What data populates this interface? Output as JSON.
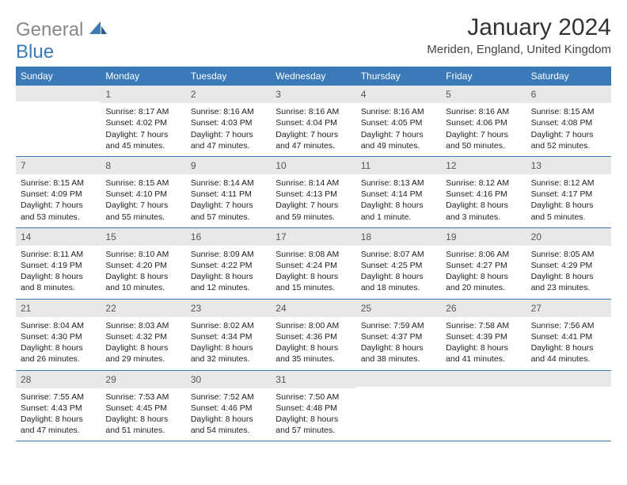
{
  "logo": {
    "gray": "General",
    "blue": "Blue"
  },
  "title": "January 2024",
  "location": "Meriden, England, United Kingdom",
  "colors": {
    "header_bg": "#3a7ab8",
    "header_text": "#ffffff",
    "daynum_bg": "#e8e8e8",
    "daynum_text": "#555555",
    "body_text": "#222222",
    "logo_gray": "#888888",
    "logo_blue": "#3a7ab8",
    "rule": "#3a7ab8"
  },
  "typography": {
    "title_fontsize": 30,
    "location_fontsize": 15,
    "header_fontsize": 12,
    "cell_fontsize": 10.5
  },
  "days_of_week": [
    "Sunday",
    "Monday",
    "Tuesday",
    "Wednesday",
    "Thursday",
    "Friday",
    "Saturday"
  ],
  "weeks": [
    [
      {
        "n": "",
        "lines": [
          "",
          "",
          "",
          ""
        ]
      },
      {
        "n": "1",
        "lines": [
          "Sunrise: 8:17 AM",
          "Sunset: 4:02 PM",
          "Daylight: 7 hours",
          "and 45 minutes."
        ]
      },
      {
        "n": "2",
        "lines": [
          "Sunrise: 8:16 AM",
          "Sunset: 4:03 PM",
          "Daylight: 7 hours",
          "and 47 minutes."
        ]
      },
      {
        "n": "3",
        "lines": [
          "Sunrise: 8:16 AM",
          "Sunset: 4:04 PM",
          "Daylight: 7 hours",
          "and 47 minutes."
        ]
      },
      {
        "n": "4",
        "lines": [
          "Sunrise: 8:16 AM",
          "Sunset: 4:05 PM",
          "Daylight: 7 hours",
          "and 49 minutes."
        ]
      },
      {
        "n": "5",
        "lines": [
          "Sunrise: 8:16 AM",
          "Sunset: 4:06 PM",
          "Daylight: 7 hours",
          "and 50 minutes."
        ]
      },
      {
        "n": "6",
        "lines": [
          "Sunrise: 8:15 AM",
          "Sunset: 4:08 PM",
          "Daylight: 7 hours",
          "and 52 minutes."
        ]
      }
    ],
    [
      {
        "n": "7",
        "lines": [
          "Sunrise: 8:15 AM",
          "Sunset: 4:09 PM",
          "Daylight: 7 hours",
          "and 53 minutes."
        ]
      },
      {
        "n": "8",
        "lines": [
          "Sunrise: 8:15 AM",
          "Sunset: 4:10 PM",
          "Daylight: 7 hours",
          "and 55 minutes."
        ]
      },
      {
        "n": "9",
        "lines": [
          "Sunrise: 8:14 AM",
          "Sunset: 4:11 PM",
          "Daylight: 7 hours",
          "and 57 minutes."
        ]
      },
      {
        "n": "10",
        "lines": [
          "Sunrise: 8:14 AM",
          "Sunset: 4:13 PM",
          "Daylight: 7 hours",
          "and 59 minutes."
        ]
      },
      {
        "n": "11",
        "lines": [
          "Sunrise: 8:13 AM",
          "Sunset: 4:14 PM",
          "Daylight: 8 hours",
          "and 1 minute."
        ]
      },
      {
        "n": "12",
        "lines": [
          "Sunrise: 8:12 AM",
          "Sunset: 4:16 PM",
          "Daylight: 8 hours",
          "and 3 minutes."
        ]
      },
      {
        "n": "13",
        "lines": [
          "Sunrise: 8:12 AM",
          "Sunset: 4:17 PM",
          "Daylight: 8 hours",
          "and 5 minutes."
        ]
      }
    ],
    [
      {
        "n": "14",
        "lines": [
          "Sunrise: 8:11 AM",
          "Sunset: 4:19 PM",
          "Daylight: 8 hours",
          "and 8 minutes."
        ]
      },
      {
        "n": "15",
        "lines": [
          "Sunrise: 8:10 AM",
          "Sunset: 4:20 PM",
          "Daylight: 8 hours",
          "and 10 minutes."
        ]
      },
      {
        "n": "16",
        "lines": [
          "Sunrise: 8:09 AM",
          "Sunset: 4:22 PM",
          "Daylight: 8 hours",
          "and 12 minutes."
        ]
      },
      {
        "n": "17",
        "lines": [
          "Sunrise: 8:08 AM",
          "Sunset: 4:24 PM",
          "Daylight: 8 hours",
          "and 15 minutes."
        ]
      },
      {
        "n": "18",
        "lines": [
          "Sunrise: 8:07 AM",
          "Sunset: 4:25 PM",
          "Daylight: 8 hours",
          "and 18 minutes."
        ]
      },
      {
        "n": "19",
        "lines": [
          "Sunrise: 8:06 AM",
          "Sunset: 4:27 PM",
          "Daylight: 8 hours",
          "and 20 minutes."
        ]
      },
      {
        "n": "20",
        "lines": [
          "Sunrise: 8:05 AM",
          "Sunset: 4:29 PM",
          "Daylight: 8 hours",
          "and 23 minutes."
        ]
      }
    ],
    [
      {
        "n": "21",
        "lines": [
          "Sunrise: 8:04 AM",
          "Sunset: 4:30 PM",
          "Daylight: 8 hours",
          "and 26 minutes."
        ]
      },
      {
        "n": "22",
        "lines": [
          "Sunrise: 8:03 AM",
          "Sunset: 4:32 PM",
          "Daylight: 8 hours",
          "and 29 minutes."
        ]
      },
      {
        "n": "23",
        "lines": [
          "Sunrise: 8:02 AM",
          "Sunset: 4:34 PM",
          "Daylight: 8 hours",
          "and 32 minutes."
        ]
      },
      {
        "n": "24",
        "lines": [
          "Sunrise: 8:00 AM",
          "Sunset: 4:36 PM",
          "Daylight: 8 hours",
          "and 35 minutes."
        ]
      },
      {
        "n": "25",
        "lines": [
          "Sunrise: 7:59 AM",
          "Sunset: 4:37 PM",
          "Daylight: 8 hours",
          "and 38 minutes."
        ]
      },
      {
        "n": "26",
        "lines": [
          "Sunrise: 7:58 AM",
          "Sunset: 4:39 PM",
          "Daylight: 8 hours",
          "and 41 minutes."
        ]
      },
      {
        "n": "27",
        "lines": [
          "Sunrise: 7:56 AM",
          "Sunset: 4:41 PM",
          "Daylight: 8 hours",
          "and 44 minutes."
        ]
      }
    ],
    [
      {
        "n": "28",
        "lines": [
          "Sunrise: 7:55 AM",
          "Sunset: 4:43 PM",
          "Daylight: 8 hours",
          "and 47 minutes."
        ]
      },
      {
        "n": "29",
        "lines": [
          "Sunrise: 7:53 AM",
          "Sunset: 4:45 PM",
          "Daylight: 8 hours",
          "and 51 minutes."
        ]
      },
      {
        "n": "30",
        "lines": [
          "Sunrise: 7:52 AM",
          "Sunset: 4:46 PM",
          "Daylight: 8 hours",
          "and 54 minutes."
        ]
      },
      {
        "n": "31",
        "lines": [
          "Sunrise: 7:50 AM",
          "Sunset: 4:48 PM",
          "Daylight: 8 hours",
          "and 57 minutes."
        ]
      },
      {
        "n": "",
        "lines": [
          "",
          "",
          "",
          ""
        ]
      },
      {
        "n": "",
        "lines": [
          "",
          "",
          "",
          ""
        ]
      },
      {
        "n": "",
        "lines": [
          "",
          "",
          "",
          ""
        ]
      }
    ]
  ]
}
